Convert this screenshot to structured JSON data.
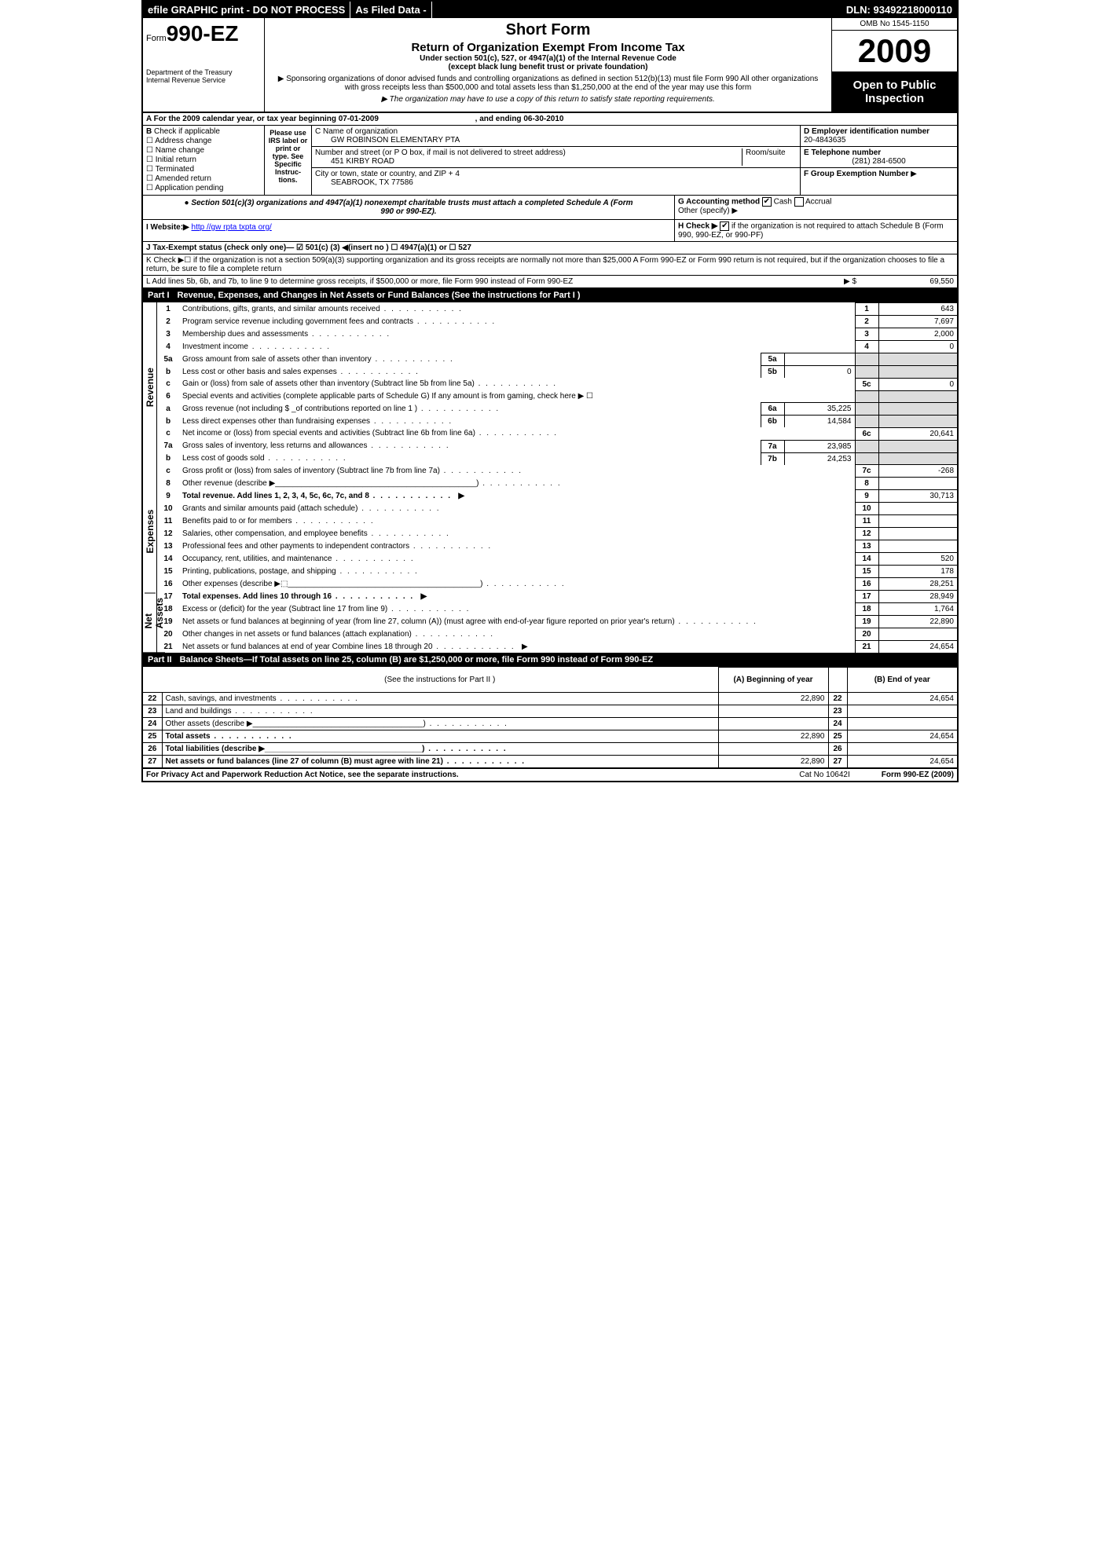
{
  "topbar": {
    "efile": "efile GRAPHIC print - DO NOT PROCESS",
    "asfiled": "As Filed Data -",
    "dln": "DLN: 93492218000110"
  },
  "header": {
    "form_prefix": "Form",
    "form_num": "990-EZ",
    "dept1": "Department of the Treasury",
    "dept2": "Internal Revenue Service",
    "short": "Short Form",
    "title": "Return of Organization Exempt From Income Tax",
    "subtitle": "Under section 501(c), 527, or 4947(a)(1) of the Internal Revenue Code",
    "subtitle2": "(except black lung benefit trust or private foundation)",
    "note1": "▶ Sponsoring organizations of donor advised funds and controlling organizations as defined in section 512(b)(13) must file Form 990 All other organizations with gross receipts less than $500,000 and total assets less than $1,250,000 at the end of the year may use this form",
    "note2": "▶ The organization may have to use a copy of this return to satisfy state reporting requirements.",
    "omb": "OMB No 1545-1150",
    "year": "2009",
    "inspect": "Open to Public Inspection"
  },
  "sectionA": {
    "text": "A  For the 2009 calendar year, or tax year beginning 07-01-2009",
    "ending": ", and ending 06-30-2010"
  },
  "sectionB": {
    "label": "B",
    "hint": "Check if applicable",
    "items": [
      "Address change",
      "Name change",
      "Initial return",
      "Terminated",
      "Amended return",
      "Application pending"
    ]
  },
  "please": "Please use IRS label or print or type. See Specific Instruc-tions.",
  "sectionC": {
    "name_lbl": "C Name of organization",
    "name": "GW ROBINSON ELEMENTARY PTA",
    "addr_lbl": "Number and street (or P O box, if mail is not delivered to street address)",
    "room_lbl": "Room/suite",
    "addr": "451 KIRBY ROAD",
    "city_lbl": "City or town, state or country, and ZIP + 4",
    "city": "SEABROOK, TX 77586"
  },
  "sectionD": {
    "label": "D Employer identification number",
    "val": "20-4843635"
  },
  "sectionE": {
    "label": "E Telephone number",
    "val": "(281) 284-6500"
  },
  "sectionF": {
    "label": "F Group Exemption Number",
    "arrow": "▶"
  },
  "sectionG": {
    "label": "G Accounting method",
    "cash": "Cash",
    "accrual": "Accrual",
    "other": "Other (specify) ▶"
  },
  "sectionH": {
    "label": "H  Check ▶",
    "text": "if the organization is not required to attach Schedule B (Form 990, 990-EZ, or 990-PF)"
  },
  "section501": "● Section 501(c)(3) organizations and 4947(a)(1) nonexempt charitable trusts must attach a completed Schedule A (Form 990 or 990-EZ).",
  "sectionI": {
    "label": "I Website:▶",
    "url": "http //gw rpta txpta org/"
  },
  "sectionJ": "J Tax-Exempt status (check only one)— ☑ 501(c) (3) ◀(insert no ) ☐ 4947(a)(1) or ☐ 527",
  "sectionK": "K Check ▶☐  if the organization is not a section 509(a)(3) supporting organization and its gross receipts are normally not more than $25,000  A Form 990-EZ or Form 990 return is not required, but if the organization chooses to file a return, be sure to file a complete return",
  "sectionL": {
    "text": "L Add lines 5b, 6b, and 7b, to line 9 to determine gross receipts, if $500,000 or more, file Form 990 instead of Form 990-EZ",
    "arrow": "▶ $",
    "val": "69,550"
  },
  "part1": {
    "header": "Part I",
    "title": "Revenue, Expenses, and Changes in Net Assets or Fund Balances (See the instructions for Part I )",
    "sides": [
      "Revenue",
      "Expenses",
      "Net Assets"
    ],
    "lines": [
      {
        "n": "1",
        "d": "Contributions, gifts, grants, and similar amounts received",
        "rn": "1",
        "rv": "643"
      },
      {
        "n": "2",
        "d": "Program service revenue including government fees and contracts",
        "rn": "2",
        "rv": "7,697"
      },
      {
        "n": "3",
        "d": "Membership dues and assessments",
        "rn": "3",
        "rv": "2,000"
      },
      {
        "n": "4",
        "d": "Investment income",
        "rn": "4",
        "rv": "0"
      },
      {
        "n": "5a",
        "d": "Gross amount from sale of assets other than inventory",
        "mn": "5a",
        "mv": ""
      },
      {
        "n": "b",
        "d": "Less cost or other basis and sales expenses",
        "mn": "5b",
        "mv": "0"
      },
      {
        "n": "c",
        "d": "Gain or (loss) from sale of assets other than inventory (Subtract line 5b from line 5a)",
        "rn": "5c",
        "rv": "0"
      },
      {
        "n": "6",
        "d": "Special events and activities (complete applicable parts of Schedule G)  If any amount is from gaming, check here ▶  ☐"
      },
      {
        "n": "a",
        "d": "Gross revenue (not including $ _of contributions reported on line 1 )",
        "mn": "6a",
        "mv": "35,225"
      },
      {
        "n": "b",
        "d": "Less  direct expenses other than fundraising expenses",
        "mn": "6b",
        "mv": "14,584"
      },
      {
        "n": "c",
        "d": "Net income or (loss) from special events and activities (Subtract line 6b from line 6a)",
        "rn": "6c",
        "rv": "20,641"
      },
      {
        "n": "7a",
        "d": "Gross sales of inventory, less returns and allowances",
        "mn": "7a",
        "mv": "23,985"
      },
      {
        "n": "b",
        "d": "Less  cost of goods sold",
        "mn": "7b",
        "mv": "24,253"
      },
      {
        "n": "c",
        "d": "Gross profit or (loss) from sales of inventory (Subtract line 7b from line 7a)",
        "rn": "7c",
        "rv": "-268"
      },
      {
        "n": "8",
        "d": "Other revenue (describe ▶______________________________________________)",
        "rn": "8",
        "rv": ""
      },
      {
        "n": "9",
        "d": "Total revenue. Add lines 1, 2, 3, 4, 5c, 6c, 7c, and 8",
        "rn": "9",
        "rv": "30,713",
        "bold": true,
        "arrow": true
      },
      {
        "n": "10",
        "d": "Grants and similar amounts paid (attach schedule)",
        "rn": "10",
        "rv": ""
      },
      {
        "n": "11",
        "d": "Benefits paid to or for members",
        "rn": "11",
        "rv": ""
      },
      {
        "n": "12",
        "d": "Salaries, other compensation, and employee benefits",
        "rn": "12",
        "rv": ""
      },
      {
        "n": "13",
        "d": "Professional fees and other payments to independent contractors",
        "rn": "13",
        "rv": ""
      },
      {
        "n": "14",
        "d": "Occupancy, rent, utilities, and maintenance",
        "rn": "14",
        "rv": "520"
      },
      {
        "n": "15",
        "d": "Printing, publications, postage, and shipping",
        "rn": "15",
        "rv": "178"
      },
      {
        "n": "16",
        "d": "Other expenses (describe ▶⬚____________________________________________)",
        "rn": "16",
        "rv": "28,251"
      },
      {
        "n": "17",
        "d": "Total expenses. Add lines 10 through 16",
        "rn": "17",
        "rv": "28,949",
        "bold": true,
        "arrow": true
      },
      {
        "n": "18",
        "d": "Excess or (deficit) for the year (Subtract line 17 from line 9)",
        "rn": "18",
        "rv": "1,764"
      },
      {
        "n": "19",
        "d": "Net assets or fund balances at beginning of year (from line 27, column (A)) (must agree with end-of-year figure reported on prior year's return)",
        "rn": "19",
        "rv": "22,890"
      },
      {
        "n": "20",
        "d": "Other changes in net assets or fund balances (attach explanation)",
        "rn": "20",
        "rv": ""
      },
      {
        "n": "21",
        "d": "Net assets or fund balances at end of year  Combine lines 18 through 20",
        "rn": "21",
        "rv": "24,654",
        "arrow": true
      }
    ]
  },
  "part2": {
    "header": "Part II",
    "title": "Balance Sheets—If Total assets on line 25, column (B) are $1,250,000 or more, file Form 990 instead of Form 990-EZ",
    "instr": "(See the instructions for Part II )",
    "colA": "(A) Beginning of year",
    "colB": "(B) End of year",
    "rows": [
      {
        "n": "22",
        "d": "Cash, savings, and investments",
        "a": "22,890",
        "b": "24,654"
      },
      {
        "n": "23",
        "d": "Land and buildings",
        "a": "",
        "b": ""
      },
      {
        "n": "24",
        "d": "Other assets (describe ▶_______________________________________)",
        "a": "",
        "b": ""
      },
      {
        "n": "25",
        "d": "Total assets",
        "a": "22,890",
        "b": "24,654",
        "bold": true
      },
      {
        "n": "26",
        "d": "Total liabilities (describe ▶____________________________________)",
        "a": "",
        "b": "",
        "bold": true
      },
      {
        "n": "27",
        "d": "Net assets or fund balances (line 27 of column (B) must agree with line 21)",
        "a": "22,890",
        "b": "24,654",
        "bold": true
      }
    ]
  },
  "footer": {
    "left": "For Privacy Act and Paperwork Reduction Act Notice, see the separate instructions.",
    "mid": "Cat No 10642I",
    "right": "Form 990-EZ (2009)"
  }
}
